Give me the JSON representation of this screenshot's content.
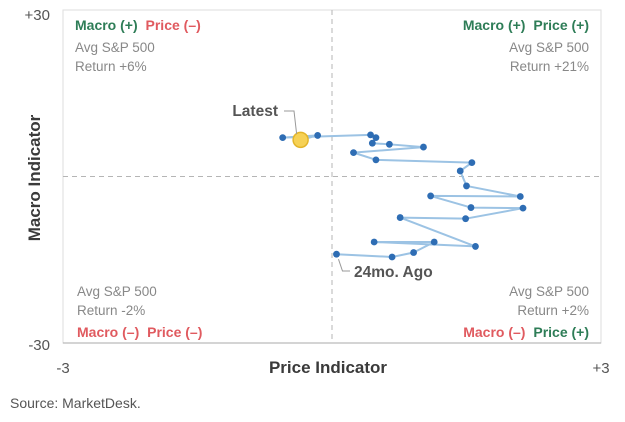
{
  "chart_data": {
    "type": "scatter",
    "xlabel": "Price Indicator",
    "ylabel": "Macro Indicator",
    "xlim": [
      -3,
      3
    ],
    "ylim": [
      -30,
      30
    ],
    "x_tick_labels": [
      "-3",
      "+3"
    ],
    "y_tick_labels": [
      "+30",
      "-30"
    ],
    "grid": false,
    "quadrants": {
      "top_left": {
        "heading": [
          {
            "text": "Macro (+)",
            "color": "#2e7d57"
          },
          {
            "text": "Price (–)",
            "color": "#e05a5f"
          }
        ],
        "lines": [
          "Avg S&P 500",
          "Return +6%"
        ]
      },
      "top_right": {
        "heading": [
          {
            "text": "Macro (+)",
            "color": "#2e7d57"
          },
          {
            "text": "Price (+)",
            "color": "#2e7d57"
          }
        ],
        "lines": [
          "Avg S&P 500",
          "Return +21%"
        ]
      },
      "bottom_left": {
        "heading": [
          {
            "text": "Macro (–)",
            "color": "#e05a5f"
          },
          {
            "text": "Price (–)",
            "color": "#e05a5f"
          }
        ],
        "lines": [
          "Avg S&P 500",
          "Return -2%"
        ]
      },
      "bottom_right": {
        "heading": [
          {
            "text": "Macro (–)",
            "color": "#e05a5f"
          },
          {
            "text": "Price (+)",
            "color": "#2e7d57"
          }
        ],
        "lines": [
          "Avg S&P 500",
          "Return +2%"
        ]
      }
    },
    "series": [
      {
        "x": [
          0.05,
          0.67,
          0.91,
          1.14,
          0.47,
          1.6,
          0.76,
          1.49,
          2.13,
          1.55,
          1.1,
          2.1,
          1.5,
          1.43,
          1.56,
          0.49,
          0.24,
          1.02,
          0.64,
          0.45,
          0.49,
          0.43,
          -0.55,
          -0.16,
          -0.35
        ],
        "y": [
          -14.0,
          -14.5,
          -13.7,
          -11.8,
          -11.8,
          -12.6,
          -7.4,
          -7.6,
          -5.7,
          -5.6,
          -3.5,
          -3.6,
          -1.7,
          1.0,
          2.5,
          3.0,
          4.3,
          5.3,
          5.8,
          6.0,
          7.0,
          7.5,
          7.0,
          7.4,
          6.6
        ]
      }
    ],
    "highlight_index": 24,
    "annotations": [
      {
        "text": "Latest",
        "point_index": 24
      },
      {
        "text": "24mo. Ago",
        "point_index": 0
      }
    ],
    "colors": {
      "line": "#9cc3e4",
      "marker": "#2e6db4",
      "highlight_fill": "#f6d155",
      "highlight_stroke": "#e3b52a",
      "divider": "#b5b5b5",
      "frame": "#dddddd"
    }
  },
  "source_note": "Source: MarketDesk."
}
